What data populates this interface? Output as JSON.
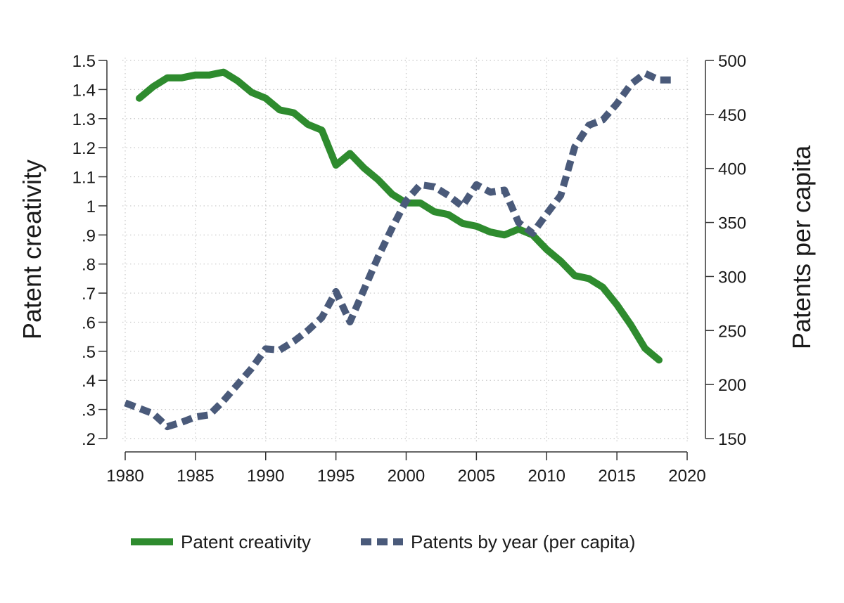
{
  "chart_data": {
    "type": "line",
    "xlabel": "",
    "ylabel": "Patent creativity",
    "y2label": "Patents per capita",
    "xlim": [
      1980,
      2020
    ],
    "ylim": [
      0.2,
      1.5
    ],
    "y2lim": [
      150,
      500
    ],
    "xticks": [
      "1980",
      "1985",
      "1990",
      "1995",
      "2000",
      "2005",
      "2010",
      "2015",
      "2020"
    ],
    "yticks": [
      ".2",
      ".3",
      ".4",
      ".5",
      ".6",
      ".7",
      ".8",
      ".9",
      "1",
      "1.1",
      "1.2",
      "1.3",
      "1.4",
      "1.5"
    ],
    "y2ticks": [
      "150",
      "200",
      "250",
      "300",
      "350",
      "400",
      "450",
      "500"
    ],
    "grid": true,
    "legend_position": "bottom",
    "series": [
      {
        "name": "Patent creativity",
        "axis": "left",
        "style": "solid",
        "color": "#2e8b2e",
        "x": [
          1981,
          1982,
          1983,
          1984,
          1985,
          1986,
          1987,
          1988,
          1989,
          1990,
          1991,
          1992,
          1993,
          1994,
          1995,
          1996,
          1997,
          1998,
          1999,
          2000,
          2001,
          2002,
          2003,
          2004,
          2005,
          2006,
          2007,
          2008,
          2009,
          2010,
          2011,
          2012,
          2013,
          2014,
          2015,
          2016,
          2017,
          2018
        ],
        "values": [
          1.37,
          1.41,
          1.44,
          1.44,
          1.45,
          1.45,
          1.46,
          1.43,
          1.39,
          1.37,
          1.33,
          1.32,
          1.28,
          1.26,
          1.14,
          1.18,
          1.13,
          1.09,
          1.04,
          1.01,
          1.01,
          0.98,
          0.97,
          0.94,
          0.93,
          0.91,
          0.9,
          0.92,
          0.9,
          0.85,
          0.81,
          0.76,
          0.75,
          0.72,
          0.66,
          0.59,
          0.51,
          0.47
        ]
      },
      {
        "name": "Patents by year (per capita)",
        "axis": "right",
        "style": "dashed",
        "color": "#4a5a7a",
        "x": [
          1980,
          1981,
          1982,
          1983,
          1984,
          1985,
          1986,
          1987,
          1988,
          1989,
          1990,
          1991,
          1992,
          1993,
          1994,
          1995,
          1996,
          1997,
          1998,
          1999,
          2000,
          2001,
          2002,
          2003,
          2004,
          2005,
          2006,
          2007,
          2008,
          2009,
          2010,
          2011,
          2012,
          2013,
          2014,
          2015,
          2016,
          2017,
          2018,
          2019
        ],
        "values": [
          183,
          178,
          173,
          161,
          165,
          170,
          172,
          185,
          200,
          215,
          233,
          232,
          240,
          250,
          262,
          286,
          258,
          288,
          318,
          345,
          370,
          385,
          383,
          375,
          365,
          385,
          378,
          380,
          350,
          340,
          358,
          375,
          420,
          440,
          445,
          460,
          478,
          488,
          482,
          482
        ]
      }
    ]
  }
}
